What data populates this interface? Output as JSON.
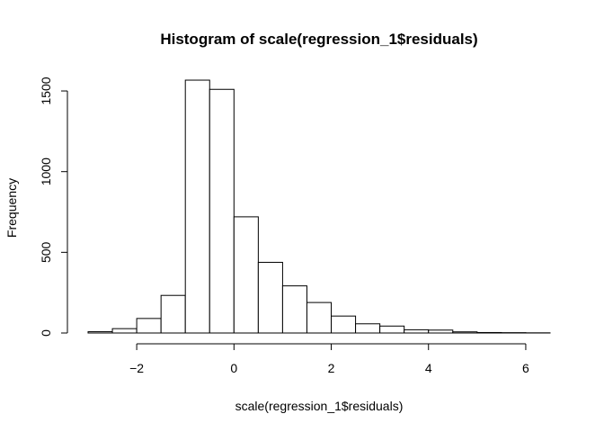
{
  "chart_data": {
    "type": "bar",
    "title": "Histogram of scale(regression_1$residuals)",
    "xlabel": "scale(regression_1$residuals)",
    "ylabel": "Frequency",
    "xlim": [
      -3,
      6.5
    ],
    "ylim": [
      0,
      1600
    ],
    "x_ticks": [
      -2,
      0,
      2,
      4,
      6
    ],
    "y_ticks": [
      0,
      500,
      1000,
      1500
    ],
    "grid": false,
    "legend": "none",
    "bins": [
      {
        "x0": -3.0,
        "x1": -2.5,
        "count": 8
      },
      {
        "x0": -2.5,
        "x1": -2.0,
        "count": 27
      },
      {
        "x0": -2.0,
        "x1": -1.5,
        "count": 90
      },
      {
        "x0": -1.5,
        "x1": -1.0,
        "count": 233
      },
      {
        "x0": -1.0,
        "x1": -0.5,
        "count": 1567
      },
      {
        "x0": -0.5,
        "x1": 0.0,
        "count": 1510
      },
      {
        "x0": 0.0,
        "x1": 0.5,
        "count": 720
      },
      {
        "x0": 0.5,
        "x1": 1.0,
        "count": 438
      },
      {
        "x0": 1.0,
        "x1": 1.5,
        "count": 292
      },
      {
        "x0": 1.5,
        "x1": 2.0,
        "count": 189
      },
      {
        "x0": 2.0,
        "x1": 2.5,
        "count": 105
      },
      {
        "x0": 2.5,
        "x1": 3.0,
        "count": 57
      },
      {
        "x0": 3.0,
        "x1": 3.5,
        "count": 43
      },
      {
        "x0": 3.5,
        "x1": 4.0,
        "count": 20
      },
      {
        "x0": 4.0,
        "x1": 4.5,
        "count": 18
      },
      {
        "x0": 4.5,
        "x1": 5.0,
        "count": 7
      },
      {
        "x0": 5.0,
        "x1": 5.5,
        "count": 3
      },
      {
        "x0": 5.5,
        "x1": 6.0,
        "count": 2
      },
      {
        "x0": 6.0,
        "x1": 6.5,
        "count": 1
      }
    ]
  }
}
